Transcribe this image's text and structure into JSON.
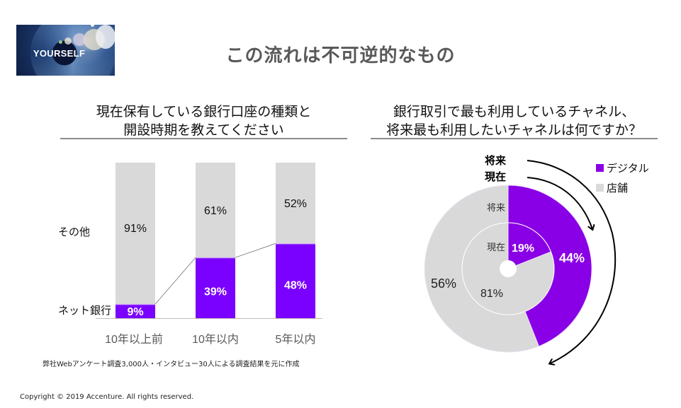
{
  "logo": {
    "text": "YOURSELF"
  },
  "title": "この流れは不可逆的なもの",
  "colors": {
    "purple_bar": "#7a00ff",
    "purple_donut": "#8a00e6",
    "gray": "#d9d9d9",
    "title_gray": "#595959"
  },
  "left_panel": {
    "title_line1": "現在保有している銀行口座の種類と",
    "title_line2": "開設時期を教えてください",
    "footnote": "弊社Webアンケート調査3,000人・インタビュー30人による調査結果を元に作成"
  },
  "right_panel": {
    "title_line1": "銀行取引で最も利用しているチャネル、",
    "title_line2": "将来最も利用したいチャネルは何ですか？"
  },
  "copyright": "Copyright © 2019 Accenture. All rights reserved.",
  "chart_data": [
    {
      "type": "bar",
      "stacked": true,
      "title": "現在保有している銀行口座の種類と開設時期を教えてください",
      "categories": [
        "10年以上前",
        "10年以内",
        "5年以内"
      ],
      "series": [
        {
          "name": "ネット銀行",
          "values": [
            9,
            39,
            48
          ],
          "labels": [
            "9%",
            "39%",
            "48%"
          ],
          "color": "#7a00ff"
        },
        {
          "name": "その他",
          "values": [
            91,
            61,
            52
          ],
          "labels": [
            "91%",
            "61%",
            "52%"
          ],
          "color": "#d9d9d9"
        }
      ],
      "ylim": [
        0,
        100
      ],
      "xlabel": "",
      "ylabel": "",
      "series_labels_position": "left",
      "grid": false
    },
    {
      "type": "pie",
      "variant": "nested-donut",
      "title": "銀行取引で最も利用しているチャネル、将来最も利用したいチャネルは何ですか？",
      "legend": [
        {
          "name": "デジタル",
          "color": "#8a00e6"
        },
        {
          "name": "店舗",
          "color": "#d9d9d9"
        }
      ],
      "legend_position": "top-right",
      "rings": [
        {
          "name": "現在",
          "position": "inner",
          "slices": [
            {
              "name": "デジタル",
              "value": 19,
              "label": "19%"
            },
            {
              "name": "店舗",
              "value": 81,
              "label": "81%"
            }
          ]
        },
        {
          "name": "将来",
          "position": "outer",
          "slices": [
            {
              "name": "デジタル",
              "value": 44,
              "label": "44%"
            },
            {
              "name": "店舗",
              "value": 56,
              "label": "56%"
            }
          ]
        }
      ],
      "annotations": [
        "将来",
        "現在"
      ]
    }
  ]
}
